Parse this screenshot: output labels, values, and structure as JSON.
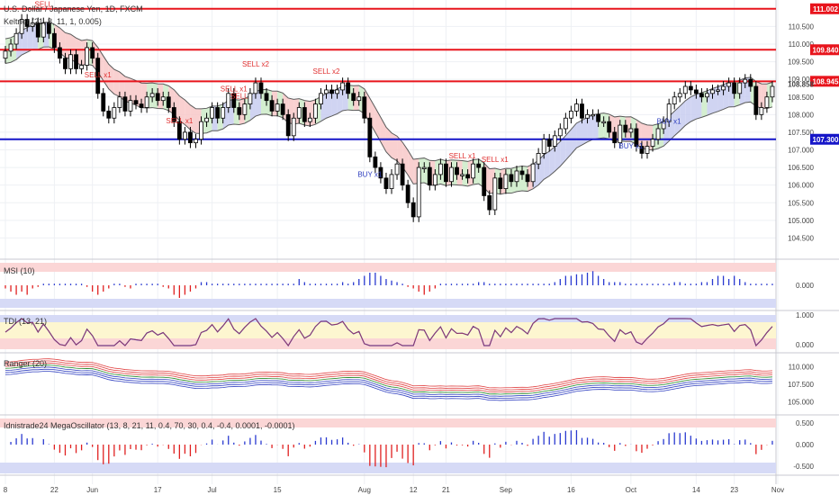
{
  "header": {
    "title": "U.S. Dollar / Japanese Yen, 1D, FXCM",
    "indicator": "Keltner (21, 8, 11, 1, 0.005)"
  },
  "panes": {
    "msi_label": "MSI (10)",
    "tdi_label": "TDI (13, 21)",
    "ranger_label": "Ranger (20)",
    "osc_label": "Idnistrade24 MegaOscillator (13, 8, 21, 11, 0.4, 70, 30, 0.4, -0.4, 0.0001, -0.0001)"
  },
  "colors": {
    "bull_candle": "#ffffff",
    "bear_candle": "#000000",
    "resistance_line": "#e8141c",
    "support_line": "#1515c8",
    "keltner_band_red": "#f8c8c8",
    "keltner_band_green": "#cdebc8",
    "keltner_band_blue": "#c8ccf0",
    "sell_signal": "#e03030",
    "buy_signal": "#3040c0"
  },
  "chart_data": [
    {
      "type": "candlestick",
      "title": "U.S. Dollar / Japanese Yen, 1D, FXCM",
      "ylim": [
        104.0,
        111.2
      ],
      "yticks": [
        104.5,
        105.0,
        105.5,
        106.0,
        106.5,
        107.0,
        107.5,
        108.0,
        108.5,
        109.0,
        109.5,
        110.0,
        110.5
      ],
      "ytick_labels": [
        "104.500",
        "105.000",
        "105.500",
        "106.000",
        "106.500",
        "107.000",
        "107.500",
        "108.000",
        "108.500",
        "109.000",
        "109.500",
        "110.000",
        "110.500"
      ],
      "x_labels": [
        "8",
        "22",
        "Jun",
        "17",
        "Jul",
        "15",
        "Aug",
        "12",
        "21",
        "Sep",
        "16",
        "Oct",
        "14",
        "23",
        "Nov"
      ],
      "x_label_days": [
        0,
        9,
        16,
        28,
        38,
        50,
        66,
        75,
        81,
        92,
        104,
        115,
        127,
        134,
        142
      ],
      "horizontal_levels": [
        {
          "value": 111.002,
          "label": "111.002",
          "color": "#e8141c"
        },
        {
          "value": 109.84,
          "label": "109.840",
          "color": "#e8141c"
        },
        {
          "value": 108.945,
          "label": "108.945",
          "color": "#e8141c"
        },
        {
          "value": 107.3,
          "label": "107.300",
          "color": "#1515c8"
        }
      ],
      "last_price": {
        "value": 108.858,
        "label": "108.858"
      },
      "close": [
        109.8,
        110.0,
        110.3,
        110.7,
        110.5,
        110.6,
        110.2,
        110.6,
        110.3,
        109.9,
        109.6,
        109.3,
        109.7,
        109.3,
        109.4,
        109.9,
        109.6,
        108.6,
        108.1,
        107.9,
        108.2,
        108.5,
        108.1,
        108.4,
        108.3,
        108.2,
        108.5,
        108.6,
        108.4,
        108.5,
        108.2,
        107.8,
        107.3,
        107.5,
        107.2,
        107.3,
        107.8,
        107.9,
        108.2,
        107.9,
        108.2,
        108.6,
        108.2,
        108.0,
        108.3,
        108.6,
        108.9,
        108.6,
        108.4,
        108.1,
        108.3,
        108.0,
        107.4,
        107.9,
        108.2,
        107.8,
        107.9,
        108.3,
        108.6,
        108.7,
        108.6,
        108.7,
        108.9,
        108.6,
        108.4,
        108.5,
        107.9,
        106.8,
        106.5,
        106.2,
        105.9,
        106.3,
        106.6,
        106.0,
        105.5,
        105.1,
        106.5,
        106.5,
        106.0,
        106.3,
        106.6,
        106.1,
        106.5,
        106.3,
        106.3,
        106.2,
        106.6,
        106.5,
        105.7,
        105.3,
        106.2,
        105.9,
        106.3,
        106.1,
        106.4,
        106.3,
        106.1,
        106.6,
        106.9,
        107.3,
        107.1,
        107.4,
        107.6,
        107.9,
        108.1,
        108.3,
        107.9,
        108.0,
        108.0,
        107.8,
        107.8,
        107.5,
        107.2,
        107.7,
        107.5,
        107.6,
        107.1,
        106.9,
        107.1,
        107.3,
        107.6,
        107.8,
        108.3,
        108.5,
        108.6,
        108.8,
        108.7,
        108.6,
        108.5,
        108.6,
        108.7,
        108.7,
        108.8,
        108.9,
        108.6,
        108.9,
        109.0,
        108.8,
        108.0,
        108.2,
        108.5,
        108.8
      ],
      "signals": [
        {
          "label": "SELL",
          "day": 7,
          "type": "sell"
        },
        {
          "label": "SELL x1",
          "day": 17,
          "type": "sell"
        },
        {
          "label": "SELL x1",
          "day": 32,
          "type": "sell"
        },
        {
          "label": "SELL x1",
          "day": 42,
          "type": "sell"
        },
        {
          "label": "SELL x2",
          "day": 46,
          "type": "sell"
        },
        {
          "label": "SELL",
          "day": 43,
          "type": "sell"
        },
        {
          "label": "SELL x2",
          "day": 59,
          "type": "sell"
        },
        {
          "label": "SELL x1",
          "day": 84,
          "type": "sell"
        },
        {
          "label": "SELL x1",
          "day": 90,
          "type": "sell"
        },
        {
          "label": "BUY x1",
          "day": 67,
          "type": "buy"
        },
        {
          "label": "BUY x1",
          "day": 115,
          "type": "buy"
        },
        {
          "label": "BUY x1",
          "day": 122,
          "type": "buy"
        }
      ]
    },
    {
      "type": "bar",
      "title": "MSI (10)",
      "ytick_labels": [
        "0.000"
      ],
      "values": [
        -0.1,
        -0.2,
        -0.3,
        -0.2,
        -0.3,
        -0.1,
        -0.05,
        0.05,
        0.05,
        0.05,
        0.05,
        0.05,
        0.05,
        0.05,
        0.05,
        -0.05,
        -0.2,
        -0.3,
        -0.2,
        -0.1,
        0.05,
        0.05,
        -0.05,
        -0.1,
        0.05,
        0.05,
        0.05,
        0.05,
        0.05,
        -0.05,
        -0.1,
        -0.3,
        -0.4,
        -0.3,
        -0.2,
        -0.1,
        0.1,
        0.1,
        0.05,
        0.05,
        0.05,
        0.05,
        0.05,
        0.05,
        0.05,
        0.05,
        0.05,
        0.05,
        0.05,
        0.05,
        0.05,
        0.05,
        0.05,
        0.05,
        0.2,
        0.1,
        0.05,
        0.05,
        0.05,
        0.05,
        0.05,
        0.05,
        0.1,
        0.05,
        0.1,
        0.2,
        0.3,
        0.4,
        0.4,
        0.3,
        0.2,
        0.15,
        0.1,
        0.05,
        -0.05,
        -0.1,
        -0.2,
        -0.3,
        -0.2,
        -0.1,
        0.05,
        0.05,
        0.05,
        0.05,
        0.05,
        0.05,
        0.05,
        0.1,
        0.1,
        0.05,
        0.05,
        0.05,
        0.05,
        0.05,
        0.05,
        0.05,
        0.05,
        0.05,
        0.05,
        0.05,
        0.05,
        0.1,
        0.2,
        0.3,
        0.3,
        0.35,
        0.35,
        0.4,
        0.45,
        0.3,
        0.2,
        0.1,
        0.1,
        0.1,
        0.05,
        0.05,
        0.05,
        0.05,
        0.05,
        0.05,
        0.05,
        0.05,
        0.05,
        0.1,
        0.1,
        0.05,
        0.05,
        0.05,
        0.1,
        0.1,
        0.2,
        0.3,
        0.3,
        0.2,
        0.3,
        0.2,
        0.1,
        0.05,
        0.05,
        0.05,
        0.05,
        0.05,
        0.05,
        0.05
      ]
    },
    {
      "type": "line",
      "title": "TDI (13, 21)",
      "ytick_labels": [
        "1.000",
        "0.000"
      ]
    },
    {
      "type": "line",
      "title": "Ranger (20)",
      "ytick_labels": [
        "110.000",
        "107.500",
        "105.000"
      ]
    },
    {
      "type": "bar",
      "title": "Idnistrade24 MegaOscillator (13, 8, 21, 11, 0.4, 70, 30, 0.4, -0.4, 0.0001, -0.0001)",
      "ytick_labels": [
        "0.500",
        "0.000",
        "-0.500"
      ]
    }
  ]
}
